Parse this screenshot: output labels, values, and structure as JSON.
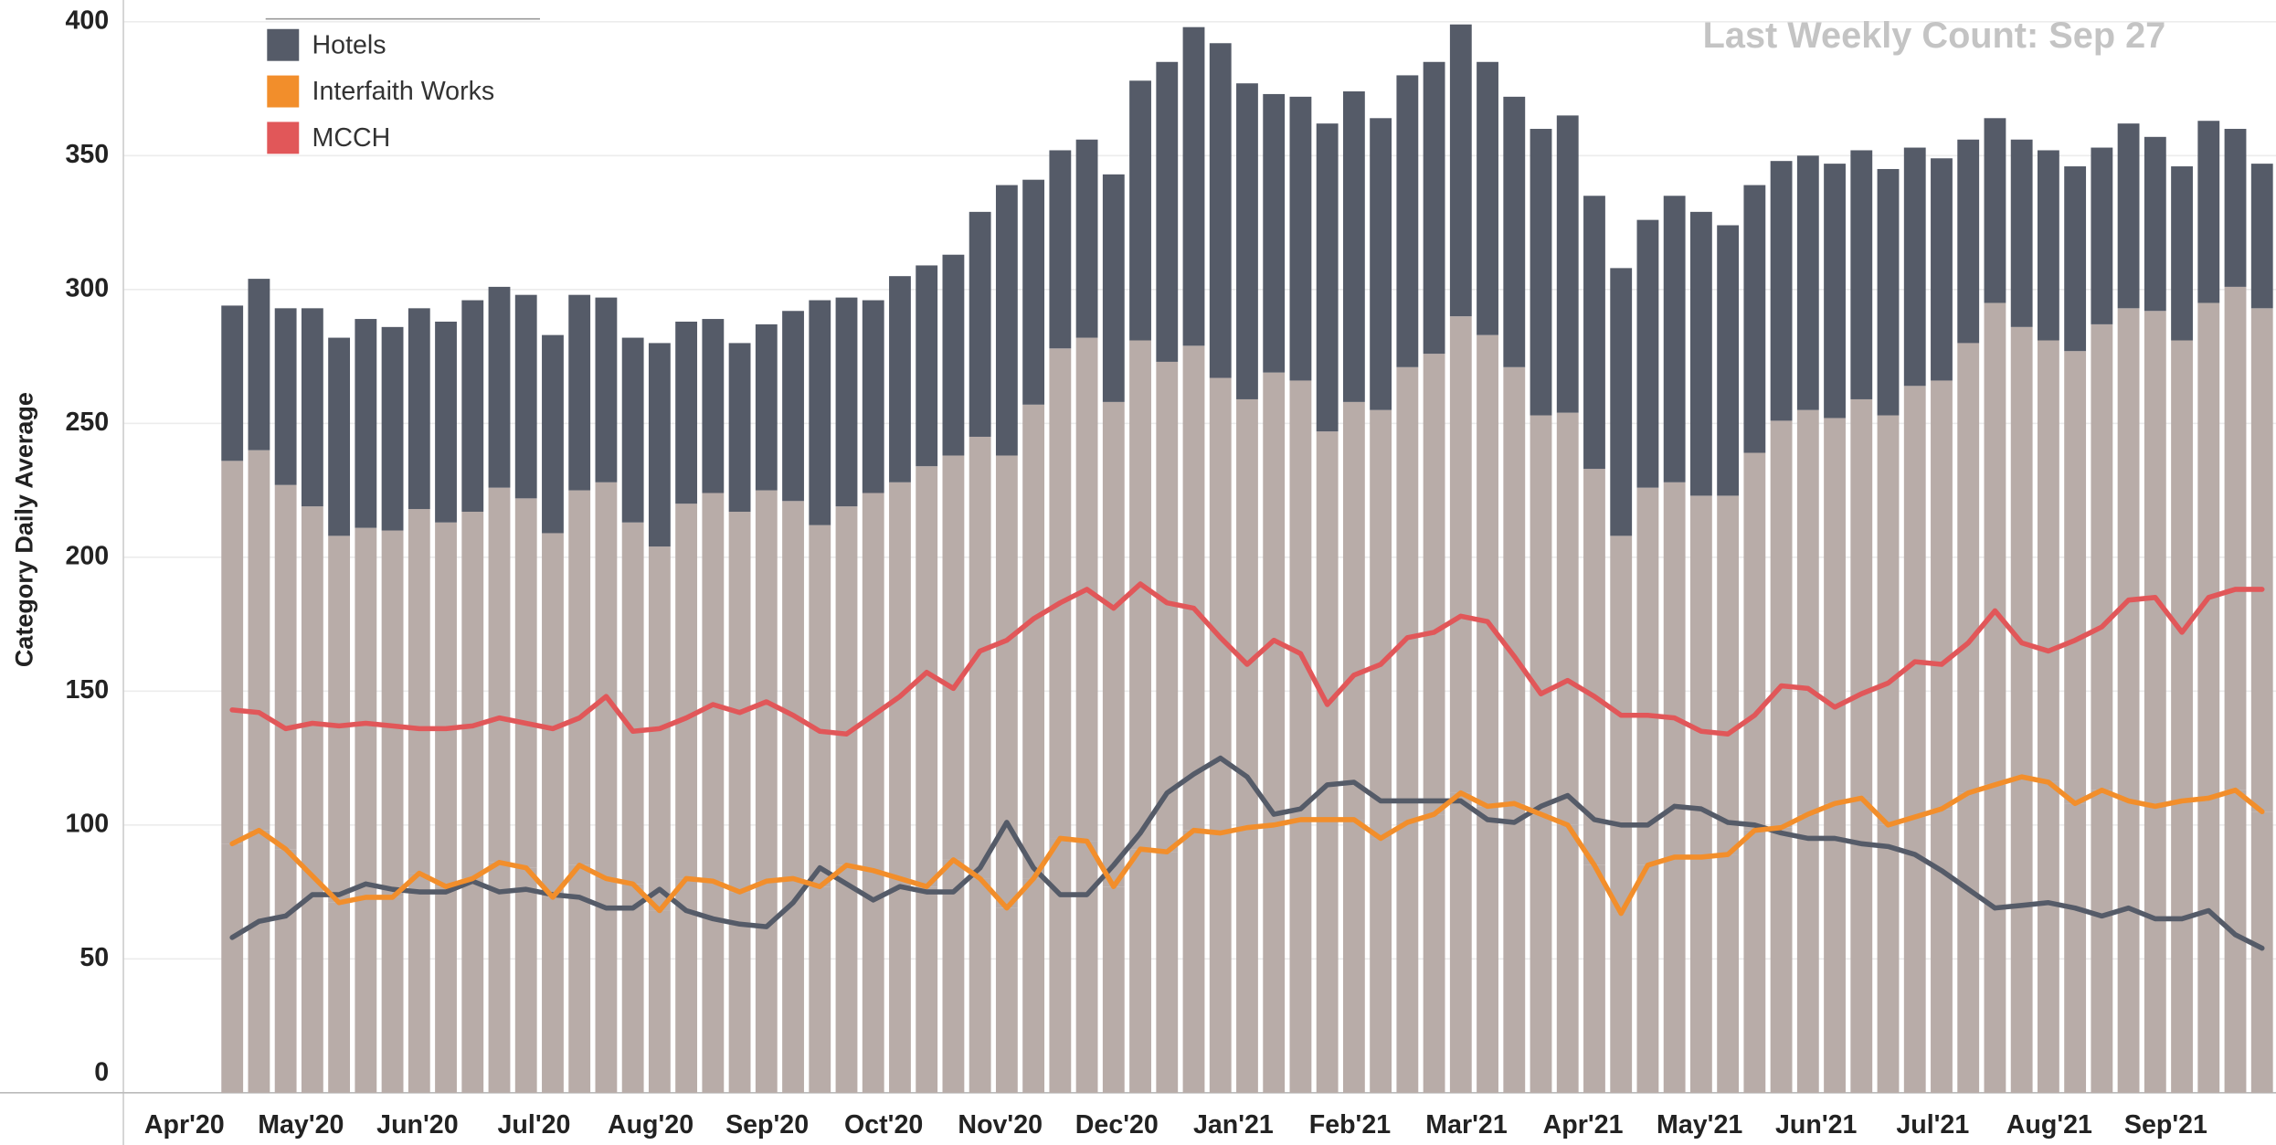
{
  "chart_data": {
    "type": "bar",
    "y_label": "Category Daily Average",
    "annotation": "Last Weekly Count: Sep 27",
    "x_axis_labels": [
      "Apr'20",
      "May'20",
      "Jun'20",
      "Jul'20",
      "Aug'20",
      "Sep'20",
      "Oct'20",
      "Nov'20",
      "Dec'20",
      "Jan'21",
      "Feb'21",
      "Mar'21",
      "Apr'21",
      "May'21",
      "Jun'21",
      "Jul'21",
      "Aug'21",
      "Sep'21"
    ],
    "ylim": [
      0,
      400
    ],
    "yticks": [
      0,
      50,
      100,
      150,
      200,
      250,
      300,
      350,
      400
    ],
    "grid": true,
    "legend": "top-left",
    "series": [
      {
        "name": "Hotels",
        "color": "#555b68",
        "bar_color": "#555b68",
        "values": [
          58,
          64,
          66,
          74,
          74,
          78,
          76,
          75,
          75,
          79,
          75,
          76,
          74,
          73,
          69,
          69,
          76,
          68,
          65,
          63,
          62,
          71,
          84,
          78,
          72,
          77,
          75,
          75,
          84,
          101,
          84,
          74,
          74,
          85,
          97,
          112,
          119,
          125,
          118,
          104,
          106,
          115,
          116,
          109,
          109,
          109,
          109,
          102,
          101,
          107,
          111,
          102,
          100,
          100,
          107,
          106,
          101,
          100,
          97,
          95,
          95,
          93,
          92,
          89,
          83,
          76,
          69,
          70,
          71,
          69,
          66,
          69,
          65,
          65,
          68,
          59,
          54
        ]
      },
      {
        "name": "Interfaith Works",
        "color": "#f28e2b",
        "bar_color": "#b8aca8",
        "values": [
          93,
          98,
          91,
          81,
          71,
          73,
          73,
          82,
          77,
          80,
          86,
          84,
          73,
          85,
          80,
          78,
          68,
          80,
          79,
          75,
          79,
          80,
          77,
          85,
          83,
          80,
          77,
          87,
          80,
          69,
          80,
          95,
          94,
          77,
          91,
          90,
          98,
          97,
          99,
          100,
          102,
          102,
          102,
          95,
          101,
          104,
          112,
          107,
          108,
          104,
          100,
          85,
          67,
          85,
          88,
          88,
          89,
          98,
          99,
          104,
          108,
          110,
          100,
          103,
          106,
          112,
          115,
          118,
          116,
          108,
          113,
          109,
          107,
          109,
          110,
          113,
          105
        ]
      },
      {
        "name": "MCCH",
        "color": "#e15759",
        "bar_color": "#b8aca8",
        "values": [
          143,
          142,
          136,
          138,
          137,
          138,
          137,
          136,
          136,
          137,
          140,
          138,
          136,
          140,
          148,
          135,
          136,
          140,
          145,
          142,
          146,
          141,
          135,
          134,
          141,
          148,
          157,
          151,
          165,
          169,
          177,
          183,
          188,
          181,
          190,
          183,
          181,
          170,
          160,
          169,
          164,
          145,
          156,
          160,
          170,
          172,
          178,
          176,
          163,
          149,
          154,
          148,
          141,
          141,
          140,
          135,
          134,
          141,
          152,
          151,
          144,
          149,
          153,
          161,
          160,
          168,
          180,
          168,
          165,
          169,
          174,
          184,
          185,
          172,
          185,
          188,
          188
        ]
      }
    ]
  }
}
